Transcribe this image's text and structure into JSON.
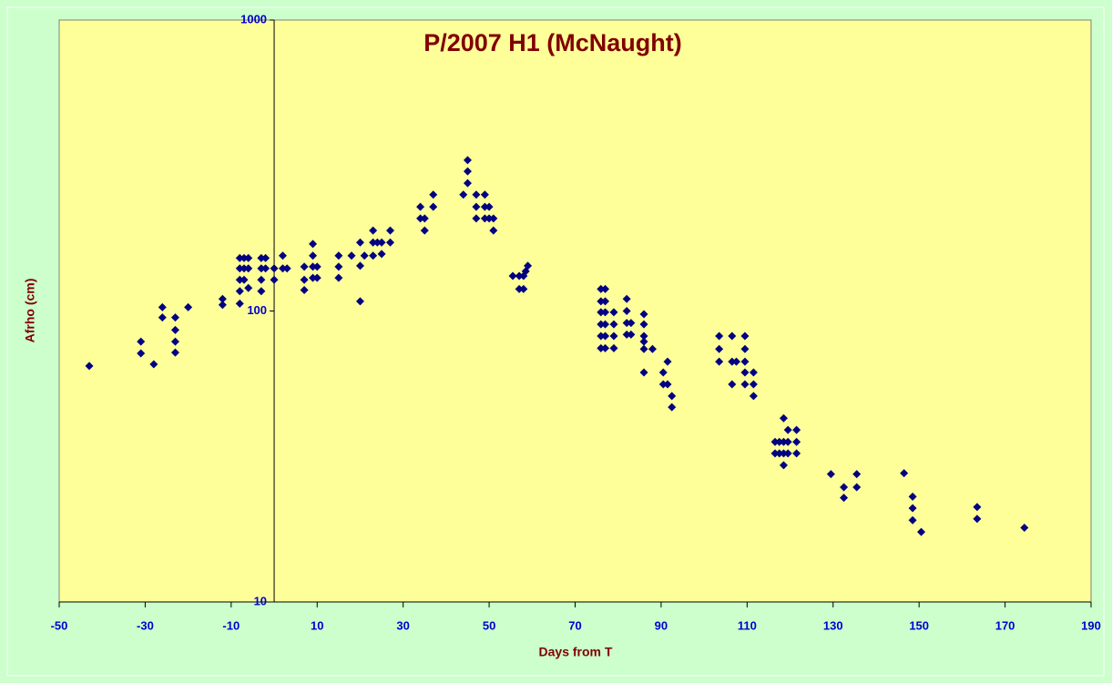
{
  "chart_data": {
    "type": "scatter",
    "title": "P/2007 H1 (McNaught)",
    "x_label": "Days from T",
    "y_label": "Afrho (cm)",
    "color": "#000080",
    "y_log": true,
    "grid": false,
    "xlim": [
      -50,
      190
    ],
    "xticks": [
      -50,
      -30,
      -10,
      10,
      30,
      50,
      70,
      90,
      110,
      130,
      150,
      170,
      190
    ],
    "ylim": [
      10,
      1000
    ],
    "yticks": [
      10,
      100,
      1000
    ],
    "x": [
      -43,
      -31,
      -31,
      -28,
      -26,
      -26,
      -23,
      -23,
      -23,
      -23,
      -20,
      -12,
      -12,
      -8,
      -8,
      -8,
      -8,
      -8,
      -7,
      -7,
      -7,
      -6,
      -6,
      -6,
      -3,
      -3,
      -3,
      -3,
      -2,
      -2,
      0,
      0,
      2,
      2,
      3,
      7,
      7,
      7,
      9,
      9,
      9,
      9,
      10,
      10,
      15,
      15,
      15,
      18,
      20,
      20,
      20,
      21,
      23,
      23,
      23,
      24,
      25,
      25,
      27,
      27,
      34,
      34,
      35,
      35,
      37,
      37,
      44,
      45,
      45,
      45,
      47,
      47,
      47,
      49,
      49,
      49,
      50,
      50,
      51,
      51,
      55.5,
      57,
      57,
      58,
      58,
      58.5,
      59,
      76,
      76,
      76,
      76,
      76,
      76,
      77,
      77,
      77,
      77,
      77,
      77,
      79,
      79,
      79,
      79,
      82,
      82,
      82,
      82,
      83,
      83,
      86,
      86,
      86,
      86,
      86,
      86,
      88,
      90.5,
      90.5,
      91.5,
      91.5,
      92.5,
      92.5,
      103.5,
      103.5,
      103.5,
      106.5,
      106.5,
      106.5,
      107.5,
      109.5,
      109.5,
      109.5,
      109.5,
      109.5,
      111.5,
      111.5,
      111.5,
      116.5,
      116.5,
      117.5,
      117.5,
      118.5,
      118.5,
      118.5,
      118.5,
      119.5,
      119.5,
      119.5,
      121.5,
      121.5,
      121.5,
      129.5,
      132.5,
      132.5,
      135.5,
      135.5,
      146.5,
      148.5,
      148.5,
      148.5,
      150.5,
      163.5,
      163.5,
      174.5
    ],
    "values": [
      64.7,
      78.5,
      71.5,
      65.6,
      103,
      95,
      95,
      86,
      78.5,
      72,
      103,
      110,
      105,
      152,
      140,
      128,
      117,
      106,
      152,
      140,
      128,
      152,
      140,
      120,
      152,
      140,
      128,
      117,
      152,
      140,
      140,
      128,
      155,
      140,
      140,
      142,
      128,
      118,
      170,
      155,
      142,
      130,
      142,
      130,
      155,
      142,
      130,
      155,
      172,
      143,
      108,
      155,
      189,
      172,
      155,
      172,
      172,
      157,
      189,
      172,
      228,
      208,
      208,
      189,
      251,
      228,
      251,
      330,
      302,
      275,
      251,
      228,
      208,
      251,
      228,
      208,
      228,
      208,
      208,
      189,
      132,
      132,
      119,
      132,
      119,
      137,
      143,
      119,
      108,
      99,
      90,
      82,
      74.5,
      119,
      108,
      99,
      90,
      82,
      74.5,
      99,
      90,
      82,
      74.5,
      110,
      100,
      91,
      83,
      91,
      83,
      97.5,
      90,
      82,
      78.5,
      74,
      61.5,
      74,
      61.5,
      56,
      67,
      56,
      51,
      46.7,
      82,
      74,
      67,
      82,
      67,
      56,
      67,
      82,
      74,
      67,
      61.5,
      56,
      61.5,
      56,
      51,
      35.5,
      32.4,
      35.5,
      32.4,
      42.8,
      35.5,
      32.4,
      29.5,
      39,
      35.5,
      32.4,
      39,
      35.5,
      32.4,
      27.5,
      24.8,
      22.8,
      27.5,
      24.8,
      27.7,
      23,
      21,
      19.1,
      17.4,
      21.2,
      19.3,
      18
    ]
  }
}
